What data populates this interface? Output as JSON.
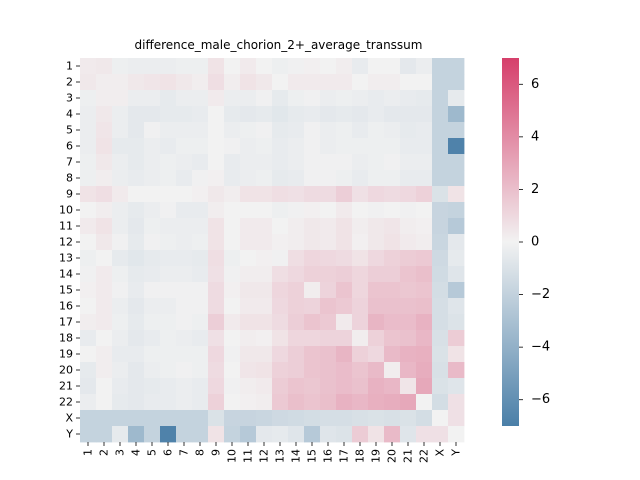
{
  "chart_data": {
    "type": "heatmap",
    "title": "difference_male_chorion_2+_average_transsum",
    "xlabel": "",
    "ylabel": "",
    "labels": [
      "1",
      "2",
      "3",
      "4",
      "5",
      "6",
      "7",
      "8",
      "9",
      "10",
      "11",
      "12",
      "13",
      "14",
      "15",
      "16",
      "17",
      "18",
      "19",
      "20",
      "21",
      "22",
      "X",
      "Y"
    ],
    "colorbar": {
      "min": -7,
      "max": 7,
      "ticks": [
        -6,
        -4,
        -2,
        0,
        2,
        4,
        6
      ],
      "tick_labels": [
        "−6",
        "−4",
        "−2",
        "0",
        "2",
        "4",
        "6"
      ],
      "colors": {
        "low": "#4a7fa8",
        "mid": "#f2f2f2",
        "high": "#d63f6b"
      }
    },
    "matrix": [
      [
        0.3,
        0.4,
        -0.2,
        -0.3,
        -0.3,
        -0.3,
        -0.2,
        -0.2,
        0.6,
        0.0,
        0.3,
        0.0,
        -0.2,
        -0.1,
        0.1,
        0.0,
        0.2,
        -0.4,
        0.0,
        0.0,
        -0.6,
        -0.3,
        -1.9,
        -1.9
      ],
      [
        0.4,
        0.2,
        0.2,
        0.4,
        0.5,
        0.6,
        0.4,
        0.2,
        0.8,
        0.2,
        0.6,
        0.4,
        0.0,
        0.3,
        0.3,
        0.3,
        0.3,
        0.0,
        0.2,
        0.2,
        0.0,
        0.0,
        -1.9,
        -1.9
      ],
      [
        -0.2,
        0.2,
        0.2,
        -0.3,
        -0.3,
        -0.5,
        -0.3,
        -0.3,
        0.3,
        -0.3,
        -0.3,
        -0.1,
        -0.5,
        -0.2,
        -0.1,
        -0.3,
        -0.2,
        -0.3,
        -0.4,
        -0.3,
        -0.4,
        -0.5,
        -1.9,
        -0.5
      ],
      [
        -0.3,
        0.4,
        -0.3,
        -0.6,
        -0.6,
        -0.5,
        -0.5,
        -0.4,
        0.0,
        -0.5,
        -0.6,
        -0.5,
        -0.7,
        -0.5,
        -0.4,
        -0.6,
        -0.5,
        -0.6,
        -0.4,
        -0.6,
        -0.6,
        -0.6,
        -1.9,
        -3.5
      ],
      [
        -0.3,
        0.5,
        -0.3,
        -0.6,
        -0.1,
        -0.3,
        -0.3,
        -0.3,
        0.0,
        -0.3,
        -0.2,
        -0.1,
        -0.5,
        -0.4,
        -0.1,
        -0.3,
        -0.2,
        -0.4,
        -0.2,
        -0.3,
        -0.5,
        -0.4,
        -1.9,
        -1.9
      ],
      [
        -0.3,
        0.6,
        -0.5,
        -0.5,
        -0.3,
        -0.4,
        -0.2,
        -0.2,
        0.0,
        -0.1,
        -0.3,
        -0.2,
        -0.4,
        -0.3,
        -0.1,
        -0.3,
        -0.2,
        -0.2,
        -0.2,
        -0.2,
        -0.4,
        -0.4,
        -1.9,
        -6.8
      ],
      [
        -0.2,
        0.4,
        -0.3,
        -0.5,
        -0.3,
        -0.2,
        -0.3,
        -0.4,
        0.0,
        -0.4,
        -0.3,
        -0.3,
        -0.4,
        -0.3,
        -0.1,
        -0.1,
        -0.1,
        -0.3,
        -0.2,
        -0.1,
        -0.3,
        -0.3,
        -1.9,
        -1.9
      ],
      [
        -0.2,
        0.2,
        -0.3,
        -0.4,
        -0.3,
        -0.2,
        -0.4,
        -0.1,
        0.1,
        -0.4,
        -0.3,
        -0.2,
        -0.5,
        -0.4,
        -0.1,
        -0.1,
        -0.2,
        -0.4,
        -0.2,
        -0.2,
        -0.4,
        -0.4,
        -1.9,
        -1.9
      ],
      [
        0.6,
        0.8,
        0.3,
        0.0,
        0.0,
        0.0,
        0.0,
        0.1,
        0.4,
        0.2,
        0.6,
        0.6,
        0.8,
        0.7,
        0.9,
        0.9,
        1.4,
        0.7,
        1.0,
        0.9,
        1.0,
        1.3,
        -1.0,
        0.6
      ],
      [
        0.0,
        0.2,
        -0.3,
        -0.5,
        -0.3,
        -0.1,
        -0.4,
        -0.4,
        0.2,
        0.0,
        0.0,
        0.0,
        -0.2,
        -0.1,
        0.1,
        0.0,
        0.3,
        0.0,
        -0.1,
        0.0,
        -0.1,
        0.0,
        -1.8,
        -1.9
      ],
      [
        0.3,
        0.6,
        -0.3,
        -0.6,
        -0.2,
        -0.3,
        -0.3,
        -0.3,
        0.6,
        0.0,
        0.3,
        0.3,
        0.0,
        0.2,
        0.4,
        0.3,
        0.6,
        0.2,
        0.4,
        0.5,
        0.2,
        0.1,
        -1.8,
        -2.5
      ],
      [
        0.0,
        0.4,
        -0.1,
        -0.5,
        -0.1,
        -0.2,
        -0.3,
        -0.2,
        0.6,
        0.0,
        0.3,
        0.3,
        0.1,
        0.2,
        0.4,
        0.3,
        0.6,
        0.1,
        0.4,
        0.6,
        0.3,
        0.2,
        -1.7,
        -0.6
      ],
      [
        -0.2,
        0.0,
        -0.5,
        -0.7,
        -0.5,
        -0.4,
        -0.4,
        -0.5,
        0.8,
        -0.2,
        0.0,
        0.1,
        -0.1,
        0.8,
        1.1,
        1.0,
        0.9,
        0.6,
        1.0,
        1.3,
        1.5,
        1.6,
        -1.5,
        -0.5
      ],
      [
        -0.1,
        0.3,
        -0.2,
        -0.5,
        -0.4,
        -0.3,
        -0.3,
        -0.4,
        0.7,
        -0.1,
        0.2,
        0.2,
        0.8,
        1.0,
        1.3,
        1.3,
        1.4,
        1.1,
        1.4,
        1.4,
        1.8,
        2.0,
        -1.4,
        -0.8
      ],
      [
        0.1,
        0.3,
        -0.1,
        -0.4,
        -0.1,
        -0.1,
        -0.1,
        -0.1,
        0.9,
        0.1,
        0.4,
        0.4,
        1.1,
        1.3,
        0.2,
        1.2,
        1.8,
        1.1,
        1.8,
        1.8,
        1.7,
        1.8,
        -1.3,
        -2.5
      ],
      [
        0.0,
        0.3,
        -0.3,
        -0.6,
        -0.3,
        -0.3,
        -0.1,
        -0.1,
        0.9,
        0.0,
        0.3,
        0.3,
        1.0,
        1.3,
        1.2,
        1.8,
        1.6,
        1.2,
        1.9,
        1.9,
        1.9,
        2.0,
        -1.2,
        -0.8
      ],
      [
        0.2,
        0.3,
        -0.2,
        -0.5,
        -0.2,
        -0.2,
        -0.1,
        -0.2,
        1.4,
        0.3,
        0.6,
        0.6,
        0.9,
        1.4,
        1.8,
        1.6,
        0.3,
        1.2,
        2.4,
        2.1,
        2.1,
        2.5,
        -1.2,
        -0.9
      ],
      [
        -0.4,
        0.0,
        -0.3,
        -0.6,
        -0.4,
        -0.2,
        -0.3,
        -0.4,
        0.7,
        0.0,
        0.2,
        0.1,
        0.6,
        1.1,
        1.1,
        1.2,
        1.2,
        0.2,
        1.3,
        1.8,
        1.9,
        2.3,
        -1.1,
        1.5
      ],
      [
        0.0,
        0.2,
        -0.4,
        -0.4,
        -0.2,
        -0.2,
        -0.2,
        -0.2,
        1.0,
        -0.1,
        0.4,
        0.4,
        1.0,
        1.4,
        1.8,
        1.9,
        2.4,
        1.3,
        1.0,
        2.2,
        2.5,
        2.6,
        -1.0,
        0.6
      ],
      [
        -0.5,
        0.2,
        -0.3,
        -0.6,
        -0.3,
        -0.2,
        -0.1,
        -0.2,
        0.9,
        0.0,
        0.5,
        0.6,
        1.3,
        1.4,
        1.8,
        1.9,
        2.1,
        1.8,
        2.2,
        0.2,
        2.3,
        2.7,
        -1.1,
        2.2
      ],
      [
        -0.6,
        0.0,
        -0.4,
        -0.6,
        -0.5,
        -0.4,
        -0.3,
        -0.4,
        1.0,
        -0.1,
        0.2,
        0.3,
        1.5,
        1.8,
        1.7,
        1.9,
        2.1,
        1.9,
        2.5,
        2.3,
        0.5,
        2.9,
        -1.0,
        -0.8
      ],
      [
        -0.3,
        0.0,
        -0.5,
        -0.6,
        -0.4,
        -0.4,
        -0.3,
        -0.4,
        1.3,
        0.0,
        0.1,
        0.2,
        1.6,
        2.0,
        1.8,
        2.0,
        2.5,
        2.3,
        2.6,
        2.7,
        2.9,
        0.0,
        -1.3,
        0.7
      ],
      [
        -1.9,
        -1.9,
        -1.9,
        -1.9,
        -1.9,
        -1.9,
        -1.9,
        -1.9,
        -1.0,
        -1.8,
        -1.8,
        -1.7,
        -1.5,
        -1.4,
        -1.3,
        -1.2,
        -1.2,
        -1.1,
        -1.0,
        -1.1,
        -1.0,
        -1.3,
        0.0,
        0.7
      ],
      [
        -1.9,
        -1.9,
        -0.5,
        -3.5,
        -1.9,
        -6.8,
        -1.9,
        -1.9,
        0.6,
        -1.9,
        -2.5,
        -0.6,
        -0.5,
        -0.8,
        -2.5,
        -0.8,
        -0.9,
        1.5,
        0.6,
        2.2,
        -0.8,
        0.7,
        0.7,
        0.0
      ]
    ]
  }
}
